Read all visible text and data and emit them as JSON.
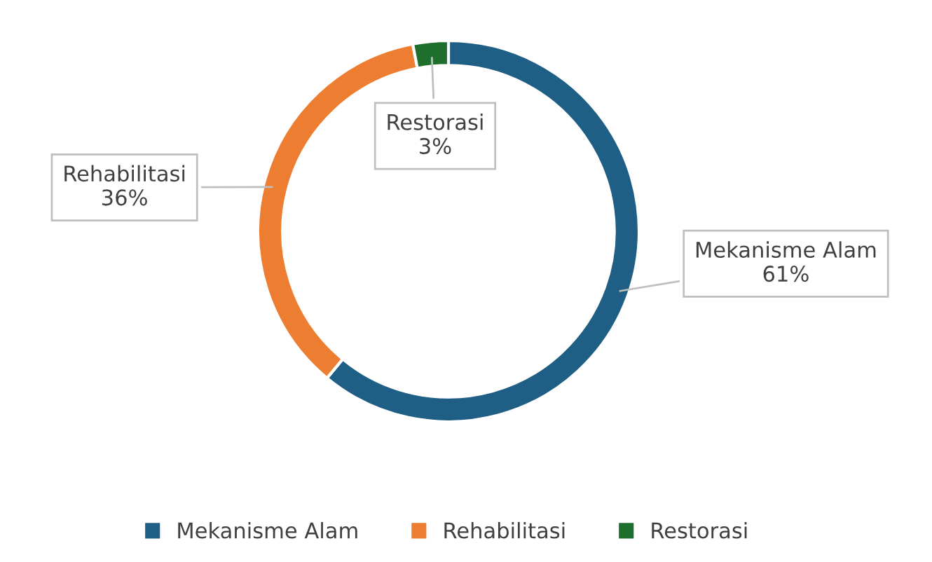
{
  "chart_data": {
    "type": "donut",
    "categories": [
      "Mekanisme Alam",
      "Rehabilitasi",
      "Restorasi"
    ],
    "values": [
      61,
      36,
      3
    ],
    "value_labels": [
      "61%",
      "36%",
      "3%"
    ],
    "colors": [
      "#1f5f85",
      "#ed7d31",
      "#1e6e2e"
    ],
    "legend": "bottom"
  }
}
